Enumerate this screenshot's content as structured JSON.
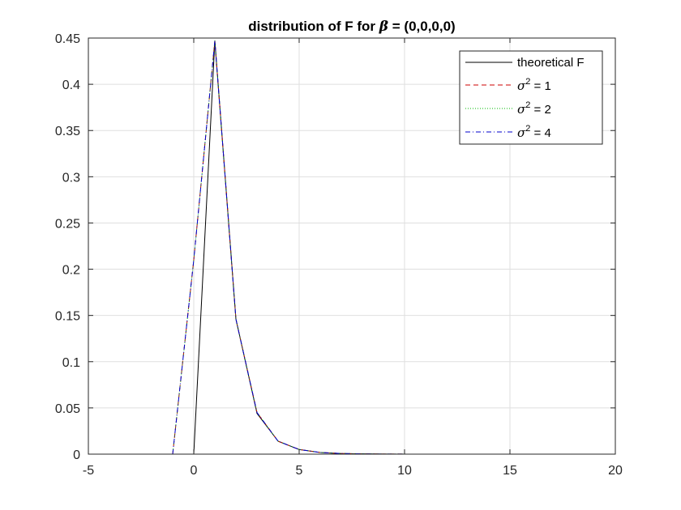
{
  "chart_data": {
    "type": "line",
    "title": {
      "prefix": "distribution of F for ",
      "symbol": "β",
      "suffix": " = (0,0,0,0)"
    },
    "xlabel": "",
    "ylabel": "",
    "xlim": [
      -5,
      20
    ],
    "ylim": [
      0,
      0.45
    ],
    "xticks": [
      -5,
      0,
      5,
      10,
      15,
      20
    ],
    "xtick_labels": [
      "-5",
      "0",
      "5",
      "10",
      "15",
      "20"
    ],
    "yticks": [
      0,
      0.05,
      0.1,
      0.15,
      0.2,
      0.25,
      0.3,
      0.35,
      0.4,
      0.45
    ],
    "ytick_labels": [
      "0",
      "0.05",
      "0.1",
      "0.15",
      "0.2",
      "0.25",
      "0.3",
      "0.35",
      "0.4",
      "0.45"
    ],
    "grid": true,
    "legend_position": "top-right",
    "series": [
      {
        "name": "theoretical F",
        "legend": {
          "text": "theoretical F"
        },
        "color": "#000000",
        "dash": "solid",
        "x": [
          0,
          1,
          2,
          3,
          4,
          5,
          6,
          7,
          8,
          9,
          10,
          11,
          12,
          13,
          14,
          15,
          16,
          17,
          18,
          19,
          20
        ],
        "y": [
          0,
          0.447,
          0.146,
          0.044,
          0.014,
          0.005,
          0.0018,
          0.0007,
          0.0003,
          0.0001,
          5e-05,
          0,
          0,
          0,
          0,
          0,
          0,
          0,
          0,
          0,
          0
        ]
      },
      {
        "name": "σ^2 = 1",
        "legend": {
          "symbol": "σ",
          "sup": "2",
          "rest": " = 1"
        },
        "color": "#cc0000",
        "dash": "dashed",
        "x": [
          -1,
          0,
          1,
          2,
          3,
          4,
          5,
          6,
          7,
          8,
          9,
          10,
          11,
          12,
          13,
          14,
          15,
          16,
          17,
          18,
          19,
          20
        ],
        "y": [
          0,
          0.21,
          0.447,
          0.146,
          0.045,
          0.014,
          0.005,
          0.0018,
          0.0007,
          0.0003,
          0.0001,
          5e-05,
          0,
          0,
          0,
          0,
          0,
          0,
          0,
          0,
          0,
          0
        ]
      },
      {
        "name": "σ^2 = 2",
        "legend": {
          "symbol": "σ",
          "sup": "2",
          "rest": " = 2"
        },
        "color": "#00b800",
        "dash": "dotted",
        "x": [
          -1,
          0,
          1,
          2,
          3,
          4,
          5,
          6,
          7,
          8,
          9,
          10,
          11,
          12,
          13,
          14,
          15,
          16,
          17,
          18,
          19,
          20
        ],
        "y": [
          0,
          0.21,
          0.447,
          0.146,
          0.045,
          0.014,
          0.005,
          0.0018,
          0.0007,
          0.0003,
          0.0001,
          5e-05,
          0,
          0,
          0,
          0,
          0,
          0,
          0,
          0,
          0,
          0
        ]
      },
      {
        "name": "σ^2 = 4",
        "legend": {
          "symbol": "σ",
          "sup": "2",
          "rest": " = 4"
        },
        "color": "#0000cc",
        "dash": "dashdot",
        "x": [
          -1,
          0,
          1,
          2,
          3,
          4,
          5,
          6,
          7,
          8,
          9,
          10,
          11,
          12,
          13,
          14,
          15,
          16,
          17,
          18,
          19,
          20
        ],
        "y": [
          0,
          0.21,
          0.447,
          0.146,
          0.045,
          0.014,
          0.005,
          0.0018,
          0.0007,
          0.0003,
          0.0001,
          5e-05,
          0,
          0,
          0,
          0,
          0,
          0,
          0,
          0,
          0,
          0
        ]
      }
    ]
  }
}
